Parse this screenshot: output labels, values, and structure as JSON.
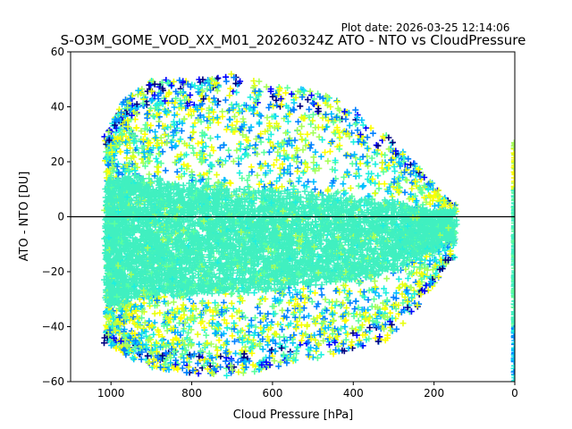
{
  "chart_data": {
    "type": "scatter",
    "title": "S-O3M_GOME_VOD_XX_M01_20260324Z ATO - NTO vs CloudPressure",
    "subtitle": "Plot date: 2026-03-25 12:14:06",
    "xlabel": "Cloud Pressure [hPa]",
    "ylabel": "ATO - NTO [DU]",
    "xlim": [
      1100,
      0
    ],
    "ylim": [
      -60,
      60
    ],
    "x_ticks": [
      1000,
      800,
      600,
      400,
      200,
      0
    ],
    "y_ticks": [
      -60,
      -40,
      -20,
      0,
      20,
      40,
      60
    ],
    "reference_line_y": 0,
    "marker": "+",
    "color_levels": [
      "#000080",
      "#0000ff",
      "#0080ff",
      "#00bfff",
      "#1ef0e0",
      "#5cff9e",
      "#a6ff58",
      "#e8ff10",
      "#ffff00"
    ],
    "bulk_color": "#40f0c0",
    "envelope": [
      {
        "p": 1010,
        "lo": -32,
        "hi": 12,
        "olo": -46,
        "ohi": 30
      },
      {
        "p": 970,
        "lo": -30,
        "hi": 14,
        "olo": -50,
        "ohi": 42
      },
      {
        "p": 900,
        "lo": -28,
        "hi": 13,
        "olo": -55,
        "ohi": 50
      },
      {
        "p": 800,
        "lo": -28,
        "hi": 11,
        "olo": -57,
        "ohi": 50
      },
      {
        "p": 700,
        "lo": -27,
        "hi": 10,
        "olo": -58,
        "ohi": 52
      },
      {
        "p": 600,
        "lo": -26,
        "hi": 9,
        "olo": -55,
        "ohi": 48
      },
      {
        "p": 500,
        "lo": -24,
        "hi": 8,
        "olo": -52,
        "ohi": 46
      },
      {
        "p": 400,
        "lo": -23,
        "hi": 6,
        "olo": -48,
        "ohi": 40
      },
      {
        "p": 320,
        "lo": -20,
        "hi": 5,
        "olo": -45,
        "ohi": 30
      },
      {
        "p": 250,
        "lo": -15,
        "hi": 3,
        "olo": -35,
        "ohi": 20
      },
      {
        "p": 200,
        "lo": -12,
        "hi": 2,
        "olo": -25,
        "ohi": 12
      },
      {
        "p": 160,
        "lo": -8,
        "hi": 1,
        "olo": -15,
        "ohi": 5
      }
    ],
    "zero_pressure_column": {
      "p": 0,
      "lo": -60,
      "hi": 27
    }
  }
}
